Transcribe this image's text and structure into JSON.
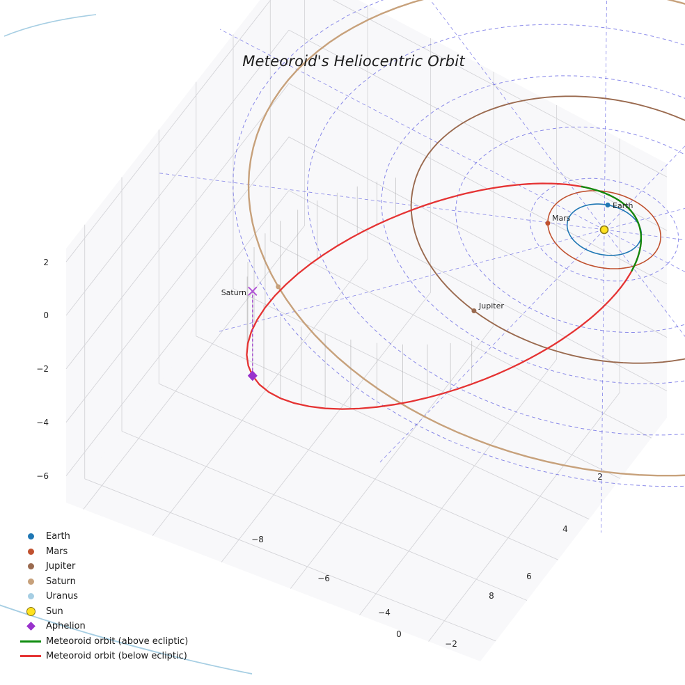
{
  "title": "Meteoroid's Heliocentric Orbit",
  "axes": {
    "x_ticks": [
      "−8",
      "−6",
      "−4",
      "−2",
      "0"
    ],
    "y_ticks": [
      "2",
      "4",
      "6",
      "8"
    ],
    "z_ticks": [
      "2",
      "0",
      "−2",
      "−4",
      "−6"
    ]
  },
  "planet_labels": {
    "earth": "Earth",
    "mars": "Mars",
    "jupiter": "Jupiter",
    "saturn": "Saturn"
  },
  "legend": [
    {
      "label": "Earth",
      "marker": "dot",
      "color": "#1f77b4"
    },
    {
      "label": "Mars",
      "marker": "dot",
      "color": "#c0512f"
    },
    {
      "label": "Jupiter",
      "marker": "dot",
      "color": "#9a6a4f"
    },
    {
      "label": "Saturn",
      "marker": "dot",
      "color": "#c7a17b"
    },
    {
      "label": "Uranus",
      "marker": "dot",
      "color": "#a6cee3"
    },
    {
      "label": "Sun",
      "marker": "sun",
      "color": "#ffe21f"
    },
    {
      "label": "Aphelion",
      "marker": "diamond",
      "color": "#9932cc"
    },
    {
      "label": "Meteoroid orbit (above ecliptic)",
      "marker": "line",
      "color": "#0e8c0e"
    },
    {
      "label": "Meteoroid orbit (below ecliptic)",
      "marker": "line",
      "color": "#e53333"
    }
  ],
  "chart_data": {
    "type": "3d_orbit",
    "title": "Meteoroid's Heliocentric Orbit",
    "axis_ranges": {
      "x": [
        -10.5,
        1.5
      ],
      "y": [
        -1,
        11
      ],
      "z": [
        -7,
        2.5
      ]
    },
    "ecliptic_grid": {
      "circle_radii_au": [
        2,
        4,
        6,
        8,
        10
      ],
      "spoke_angles_deg": [
        0,
        30,
        60,
        90,
        120,
        150,
        180,
        210,
        240,
        270,
        300,
        330
      ],
      "spoke_length_au": 12,
      "color": "#3c3cdc"
    },
    "sun": {
      "name": "Sun",
      "color": "#ffe21f"
    },
    "planets": [
      {
        "name": "Earth",
        "orbit_radius_au": 1.0,
        "position_angle_deg": 245,
        "color": "#1f77b4"
      },
      {
        "name": "Mars",
        "orbit_radius_au": 1.52,
        "position_angle_deg": 149,
        "color": "#c0512f"
      },
      {
        "name": "Jupiter",
        "orbit_radius_au": 5.2,
        "position_angle_deg": 102,
        "color": "#9a6a4f"
      },
      {
        "name": "Saturn",
        "orbit_radius_au": 9.58,
        "position_angle_deg": 126,
        "color": "#c7a17b"
      },
      {
        "name": "Uranus",
        "orbit_radius_au": 19.2,
        "position_angle_deg": null,
        "color": "#a6cee3"
      }
    ],
    "meteoroid_orbit": {
      "semi_major_axis_au": 5.88,
      "eccentricity": 0.838,
      "perihelion_au": 0.95,
      "aphelion_au": 10.8,
      "inclination_deg": 17,
      "aphelion_longitude_deg": 126,
      "above_ecliptic_color": "#0e8c0e",
      "below_ecliptic_color": "#e53333",
      "aphelion_color": "#9932cc",
      "projection_marker_color": "#b04fd6",
      "aphelion_xyz_au": [
        -6.07,
        8.36,
        -3.16
      ],
      "stems": {
        "nu_start_deg": 150,
        "nu_end_deg": 213,
        "step_deg": 3
      }
    }
  }
}
